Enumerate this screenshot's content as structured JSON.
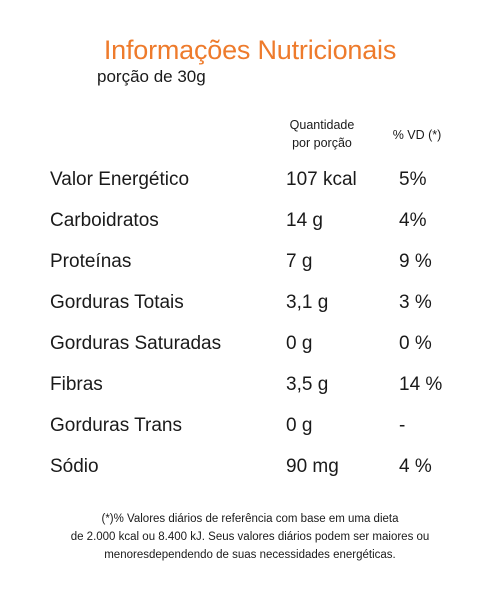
{
  "header": {
    "title": "Informações Nutricionais",
    "portion": "porção de 30g"
  },
  "table": {
    "columns": {
      "quantity_line1": "Quantidade",
      "quantity_line2": "por porção",
      "vd": "% VD (*)"
    },
    "rows": [
      {
        "name": "Valor Energético",
        "quantity": "107 kcal",
        "vd": "5%"
      },
      {
        "name": "Carboidratos",
        "quantity": "14 g",
        "vd": "4%"
      },
      {
        "name": "Proteínas",
        "quantity": "7 g",
        "vd": "9 %"
      },
      {
        "name": "Gorduras Totais",
        "quantity": "3,1 g",
        "vd": "3 %"
      },
      {
        "name": "Gorduras Saturadas",
        "quantity": "0 g",
        "vd": "0 %"
      },
      {
        "name": "Fibras",
        "quantity": "3,5 g",
        "vd": "14 %"
      },
      {
        "name": "Gorduras Trans",
        "quantity": "0 g",
        "vd": "-"
      },
      {
        "name": "Sódio",
        "quantity": "90 mg",
        "vd": "4 %"
      }
    ]
  },
  "footnote": {
    "line1": "(*)% Valores diários de referência com base em uma dieta",
    "line2": "de 2.000 kcal ou 8.400 kJ. Seus valores diários podem ser maiores ou",
    "line3": "menoresdependendo de suas necessidades energéticas."
  },
  "colors": {
    "title": "#ee7b2c",
    "text": "#1a1a1a",
    "background": "#ffffff"
  }
}
